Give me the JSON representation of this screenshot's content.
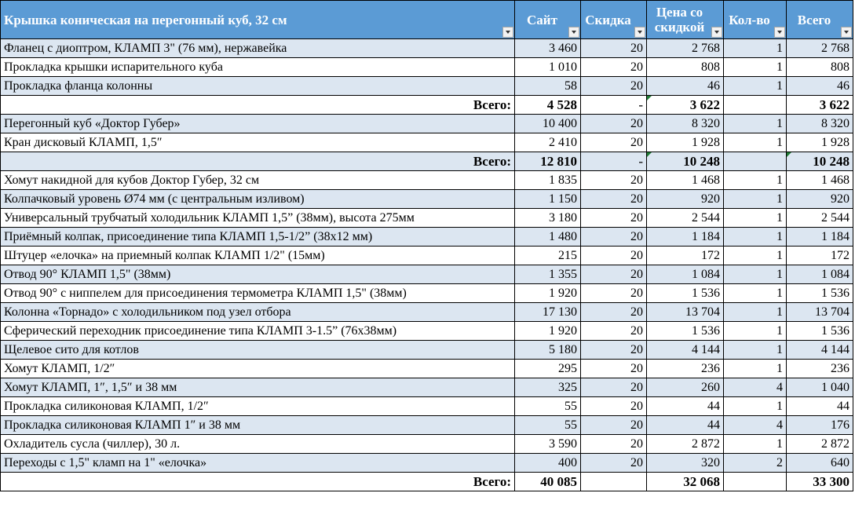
{
  "header": {
    "title": "Крышка коническая на перегонный куб, 32 см",
    "col_site": "Сайт",
    "col_discount": "Скидка",
    "col_price": "Цена со скидкой",
    "col_qty": "Кол-во",
    "col_total": "Всего"
  },
  "rows": [
    {
      "name": "Фланец с диоптром, КЛАМП 3\" (76 мм), нержавейка",
      "site": "3 460",
      "discount": "20",
      "price": "2 768",
      "qty": "1",
      "total": "2 768"
    },
    {
      "name": "Прокладка крышки испарительного куба",
      "site": "1 010",
      "discount": "20",
      "price": "808",
      "qty": "1",
      "total": "808"
    },
    {
      "name": "Прокладка фланца колонны",
      "site": "58",
      "discount": "20",
      "price": "46",
      "qty": "1",
      "total": "46"
    },
    {
      "label": "Всего:",
      "site": "4 528",
      "discount": "-",
      "price": "3 622",
      "qty": "",
      "total": "3 622"
    },
    {
      "name": "Перегонный куб «Доктор Губер»",
      "site": "10 400",
      "discount": "20",
      "price": "8 320",
      "qty": "1",
      "total": "8 320"
    },
    {
      "name": "Кран дисковый КЛАМП, 1,5″",
      "site": "2 410",
      "discount": "20",
      "price": "1 928",
      "qty": "1",
      "total": "1 928"
    },
    {
      "label": "Всего:",
      "site": "12 810",
      "discount": "-",
      "price": "10 248",
      "qty": "",
      "total": "10 248"
    },
    {
      "name": "Хомут накидной для кубов Доктор Губер, 32 см",
      "site": "1 835",
      "discount": "20",
      "price": "1 468",
      "qty": "1",
      "total": "1 468"
    },
    {
      "name": "Колпачковый уровень Ø74 мм (с центральным изливом)",
      "site": "1 150",
      "discount": "20",
      "price": "920",
      "qty": "1",
      "total": "920"
    },
    {
      "name": "Универсальный трубчатый холодильник КЛАМП 1,5” (38мм), высота 275мм",
      "site": "3 180",
      "discount": "20",
      "price": "2 544",
      "qty": "1",
      "total": "2 544"
    },
    {
      "name": "Приёмный колпак, присоединение типа КЛАМП 1,5-1/2” (38х12 мм)",
      "site": "1 480",
      "discount": "20",
      "price": "1 184",
      "qty": "1",
      "total": "1 184"
    },
    {
      "name": "Штуцер «елочка» на приемный колпак КЛАМП 1/2\" (15мм)",
      "site": "215",
      "discount": "20",
      "price": "172",
      "qty": "1",
      "total": "172"
    },
    {
      "name": "Отвод 90° КЛАМП 1,5\" (38мм)",
      "site": "1 355",
      "discount": "20",
      "price": "1 084",
      "qty": "1",
      "total": "1 084"
    },
    {
      "name": "Отвод 90° с ниппелем для присоединения термометра КЛАМП 1,5\" (38мм)",
      "site": "1 920",
      "discount": "20",
      "price": "1 536",
      "qty": "1",
      "total": "1 536"
    },
    {
      "name": "Колонна «Торнадо» с холодильником под узел отбора",
      "site": "17 130",
      "discount": "20",
      "price": "13 704",
      "qty": "1",
      "total": "13 704"
    },
    {
      "name": "Сферический переходник присоединение типа КЛАМП 3-1.5” (76х38мм)",
      "site": "1 920",
      "discount": "20",
      "price": "1 536",
      "qty": "1",
      "total": "1 536"
    },
    {
      "name": "Щелевое сито для котлов",
      "site": "5 180",
      "discount": "20",
      "price": "4 144",
      "qty": "1",
      "total": "4 144"
    },
    {
      "name": "Хомут КЛАМП, 1/2″",
      "site": "295",
      "discount": "20",
      "price": "236",
      "qty": "1",
      "total": "236"
    },
    {
      "name": "Хомут КЛАМП, 1″, 1,5″ и 38 мм",
      "site": "325",
      "discount": "20",
      "price": "260",
      "qty": "4",
      "total": "1 040"
    },
    {
      "name": "Прокладка силиконовая КЛАМП, 1/2″",
      "site": "55",
      "discount": "20",
      "price": "44",
      "qty": "1",
      "total": "44"
    },
    {
      "name": "Прокладка силиконовая КЛАМП 1″ и 38 мм",
      "site": "55",
      "discount": "20",
      "price": "44",
      "qty": "4",
      "total": "176"
    },
    {
      "name": "Охладитель сусла (чиллер), 30 л.",
      "site": "3 590",
      "discount": "20",
      "price": "2 872",
      "qty": "1",
      "total": "2 872"
    },
    {
      "name": "Переходы с 1,5\" кламп на 1\" «елочка»",
      "site": "400",
      "discount": "20",
      "price": "320",
      "qty": "2",
      "total": "640"
    },
    {
      "label": "Всего:",
      "site": "40 085",
      "discount": "",
      "price": "32 068",
      "qty": "",
      "total": "33 300"
    }
  ],
  "colors": {
    "header_bg": "#5b9bd5",
    "band_bg": "#dce6f1",
    "plain_bg": "#ffffff",
    "marker": "#1e7b34"
  }
}
